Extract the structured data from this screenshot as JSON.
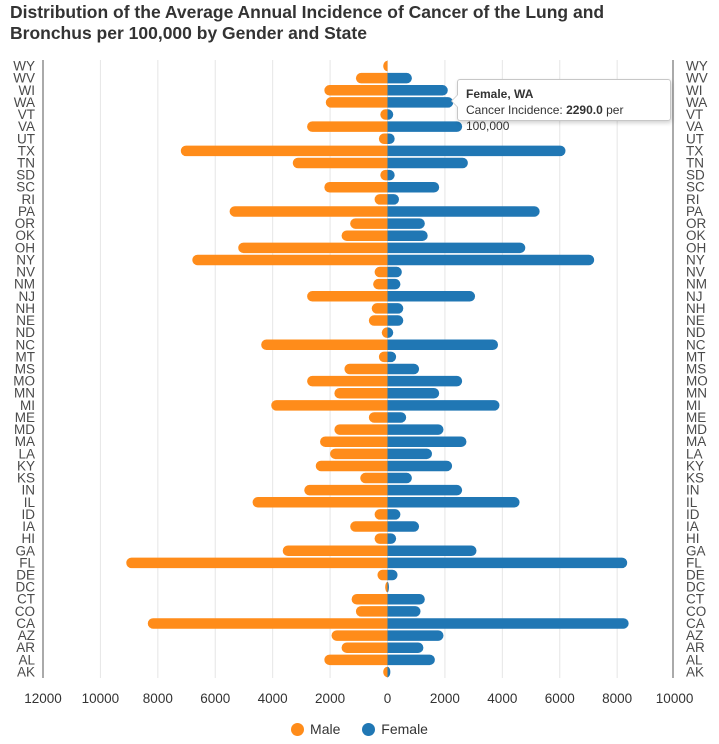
{
  "chart_data": {
    "type": "bar",
    "orientation": "horizontal",
    "layout": "population-pyramid",
    "title": "Distribution of the Average Annual Incidence of Cancer of the Lung and Bronchus per 100,000 by Gender and State",
    "categories": [
      "WY",
      "WV",
      "WI",
      "WA",
      "VT",
      "VA",
      "UT",
      "TX",
      "TN",
      "SD",
      "SC",
      "RI",
      "PA",
      "OR",
      "OK",
      "OH",
      "NY",
      "NV",
      "NM",
      "NJ",
      "NH",
      "NE",
      "ND",
      "NC",
      "MT",
      "MS",
      "MO",
      "MN",
      "MI",
      "ME",
      "MD",
      "MA",
      "LA",
      "KY",
      "KS",
      "IN",
      "IL",
      "ID",
      "IA",
      "HI",
      "GA",
      "FL",
      "DE",
      "DC",
      "CT",
      "CO",
      "CA",
      "AZ",
      "AR",
      "AL",
      "AK"
    ],
    "series": [
      {
        "name": "Male",
        "color": "#ff8c1a",
        "side": "left",
        "values": [
          150,
          1100,
          2200,
          2150,
          250,
          2800,
          300,
          7200,
          3300,
          250,
          2200,
          450,
          5500,
          1300,
          1600,
          5200,
          6800,
          450,
          500,
          2800,
          550,
          650,
          200,
          4400,
          300,
          1500,
          2800,
          1850,
          4050,
          650,
          1850,
          2350,
          2000,
          2500,
          950,
          2900,
          4700,
          450,
          1300,
          450,
          3650,
          9100,
          350,
          80,
          1250,
          1100,
          8350,
          1950,
          1600,
          2200,
          150
        ]
      },
      {
        "name": "Female",
        "color": "#2077b4",
        "side": "right",
        "values": [
          0,
          850,
          2100,
          2290,
          200,
          2600,
          250,
          6200,
          2800,
          250,
          1800,
          400,
          5300,
          1300,
          1400,
          4800,
          7200,
          500,
          450,
          3050,
          550,
          550,
          200,
          3850,
          300,
          1100,
          2600,
          1800,
          3900,
          650,
          1950,
          2750,
          1550,
          2250,
          850,
          2600,
          4600,
          450,
          1100,
          300,
          3100,
          8350,
          350,
          50,
          1300,
          1150,
          8400,
          1950,
          1250,
          1650,
          100
        ]
      }
    ],
    "xlim": [
      -12000,
      10000
    ],
    "x_ticks": [
      -12000,
      -10000,
      -8000,
      -6000,
      -4000,
      -2000,
      0,
      2000,
      4000,
      6000,
      8000,
      10000
    ],
    "x_tick_labels": [
      "12000",
      "10000",
      "8000",
      "6000",
      "4000",
      "2000",
      "0",
      "2000",
      "4000",
      "6000",
      "8000",
      "10000"
    ],
    "xlabel": "",
    "ylabel": "",
    "grid": true,
    "legend_position": "bottom-center"
  },
  "tooltip": {
    "title": "Female, WA",
    "label": "Cancer Incidence: ",
    "value": "2290.0",
    "unit": " per 100,000"
  }
}
